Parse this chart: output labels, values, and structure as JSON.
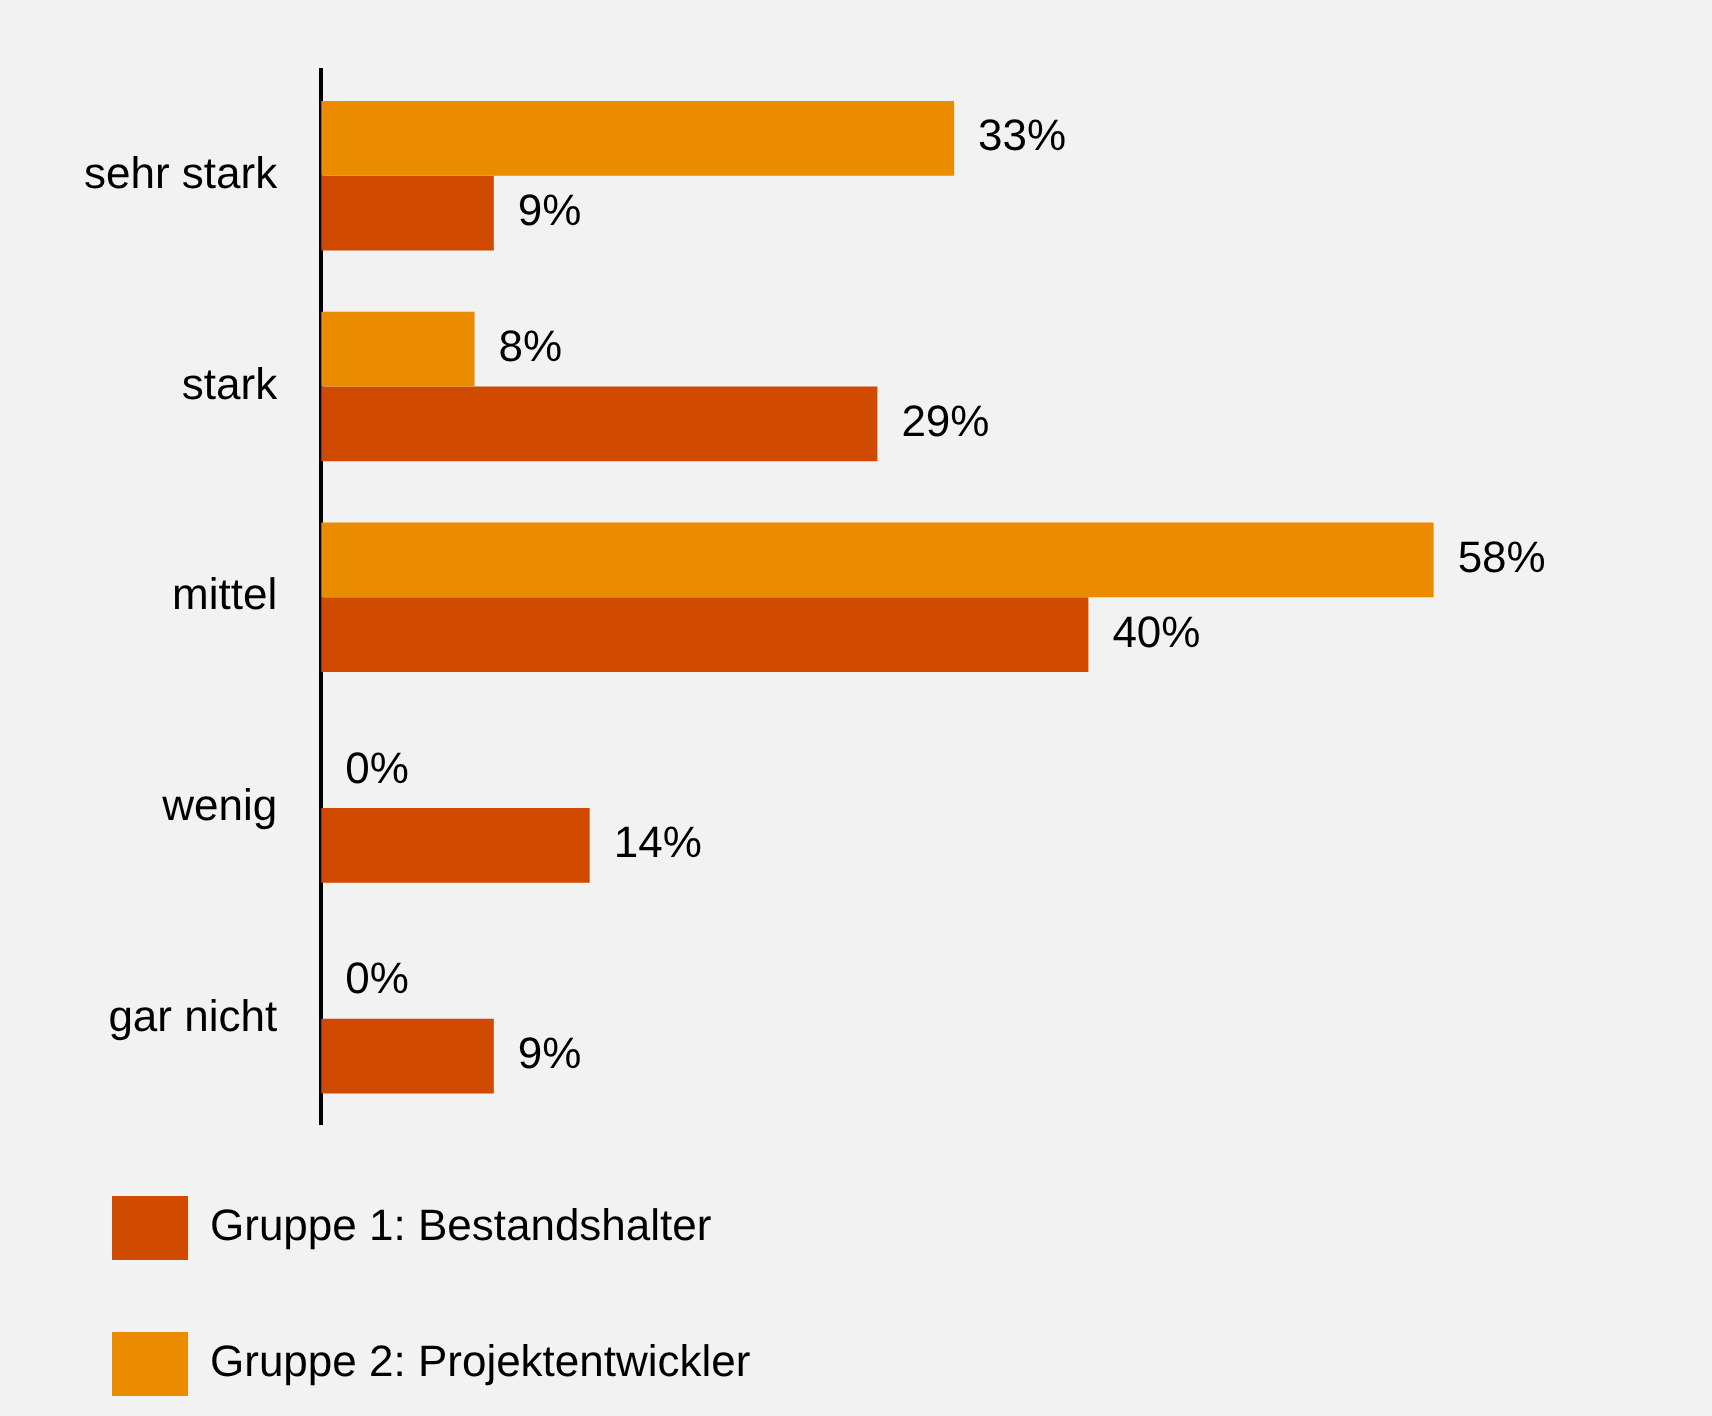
{
  "chart_data": {
    "type": "bar",
    "orientation": "horizontal",
    "categories": [
      "sehr stark",
      "stark",
      "mittel",
      "wenig",
      "gar nicht"
    ],
    "series": [
      {
        "name": "Gruppe 1: Bestandshalter",
        "color": "#d04a02",
        "values": [
          9,
          29,
          40,
          14,
          9
        ],
        "value_labels": [
          "9%",
          "29%",
          "40%",
          "14%",
          "9%"
        ]
      },
      {
        "name": "Gruppe 2: Projektentwickler",
        "color": "#eb8c00",
        "values": [
          33,
          8,
          58,
          0,
          0
        ],
        "value_labels": [
          "33%",
          "8%",
          "58%",
          "0%",
          "0%"
        ]
      }
    ],
    "legend": "bottom"
  }
}
